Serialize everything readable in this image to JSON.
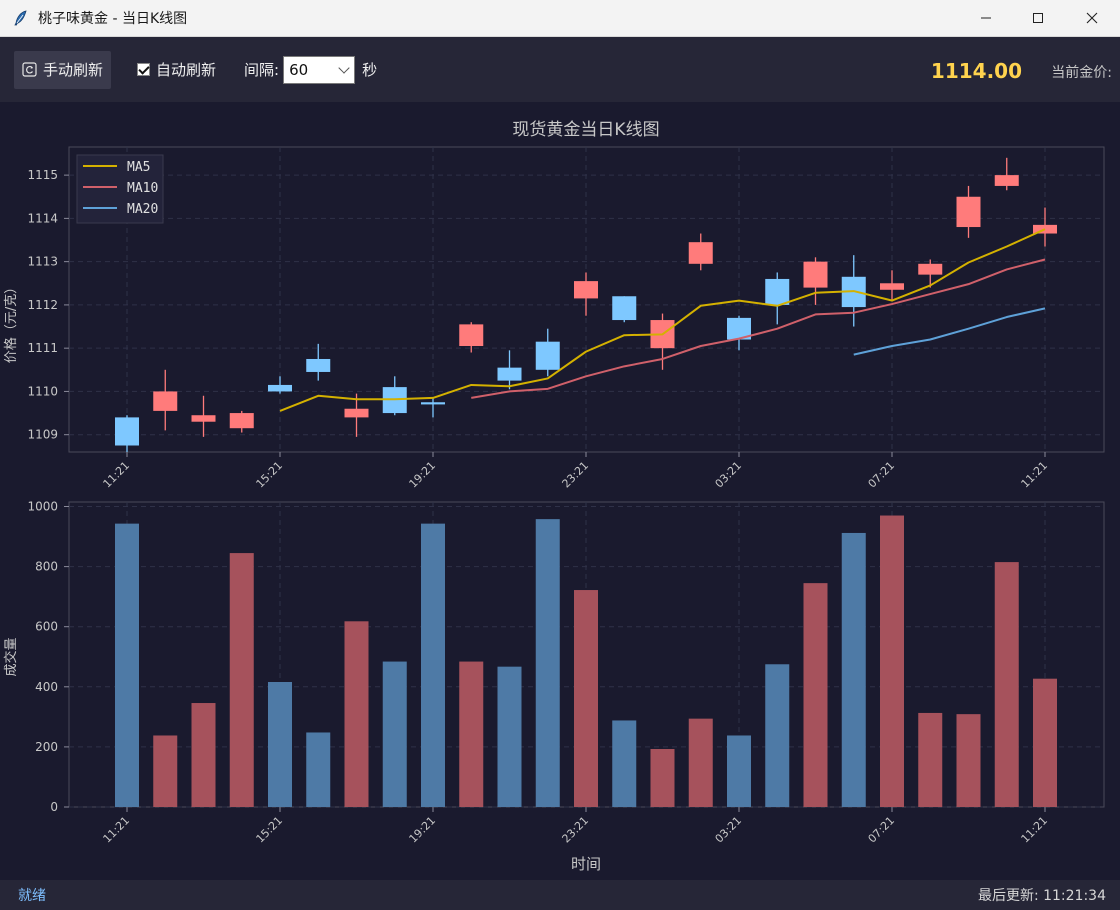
{
  "window": {
    "title": "桃子味黄金 - 当日K线图",
    "icons": [
      "feather-icon",
      "minimize-icon",
      "maximize-icon",
      "close-icon"
    ]
  },
  "toolbar": {
    "refresh_label": "手动刷新",
    "auto_refresh_label": "自动刷新",
    "auto_refresh_checked": true,
    "interval_label": "间隔:",
    "interval_value": "60",
    "interval_unit": "秒",
    "current_price": "1114.00",
    "current_price_label": "当前金价:"
  },
  "status": {
    "left": "就绪",
    "right": "最后更新: 11:21:34"
  },
  "colors": {
    "background": "#1a1a2e",
    "up": "#ff7b7b",
    "down": "#7ec8ff",
    "up_volume": "#a6525c",
    "down_volume": "#4e7aa6",
    "ma5": "#d4b100",
    "ma10": "#d0606a",
    "ma20": "#5ea1d8",
    "price_highlight": "#ffd34e"
  },
  "chart_data": [
    {
      "type": "candlestick",
      "title": "现货黄金当日K线图",
      "ylabel": "价格（元/克）",
      "xlabel": "",
      "ylim": [
        1108.6,
        1115.65
      ],
      "yticks": [
        1109,
        1110,
        1111,
        1112,
        1113,
        1114,
        1115
      ],
      "xticks": [
        {
          "index": 0,
          "label": "11:21"
        },
        {
          "index": 4,
          "label": "15:21"
        },
        {
          "index": 8,
          "label": "19:21"
        },
        {
          "index": 12,
          "label": "23:21"
        },
        {
          "index": 16,
          "label": "03:21"
        },
        {
          "index": 20,
          "label": "07:21"
        },
        {
          "index": 24,
          "label": "11:21"
        }
      ],
      "grid": true,
      "legend_position": "top-left",
      "candles": [
        {
          "o": 1109.4,
          "h": 1109.45,
          "l": 1108.6,
          "c": 1108.75
        },
        {
          "o": 1109.55,
          "h": 1110.5,
          "l": 1109.1,
          "c": 1110.0
        },
        {
          "o": 1109.3,
          "h": 1109.9,
          "l": 1108.95,
          "c": 1109.45
        },
        {
          "o": 1109.15,
          "h": 1109.55,
          "l": 1109.05,
          "c": 1109.5
        },
        {
          "o": 1110.15,
          "h": 1110.35,
          "l": 1109.95,
          "c": 1110.0
        },
        {
          "o": 1110.75,
          "h": 1111.1,
          "l": 1110.25,
          "c": 1110.45
        },
        {
          "o": 1109.4,
          "h": 1109.95,
          "l": 1108.95,
          "c": 1109.6
        },
        {
          "o": 1110.1,
          "h": 1110.35,
          "l": 1109.45,
          "c": 1109.5
        },
        {
          "o": 1109.75,
          "h": 1109.85,
          "l": 1109.4,
          "c": 1109.7
        },
        {
          "o": 1111.05,
          "h": 1111.6,
          "l": 1110.9,
          "c": 1111.55
        },
        {
          "o": 1110.55,
          "h": 1110.95,
          "l": 1110.05,
          "c": 1110.25
        },
        {
          "o": 1111.15,
          "h": 1111.45,
          "l": 1110.35,
          "c": 1110.5
        },
        {
          "o": 1112.15,
          "h": 1112.75,
          "l": 1111.75,
          "c": 1112.55
        },
        {
          "o": 1112.2,
          "h": 1112.2,
          "l": 1111.6,
          "c": 1111.65
        },
        {
          "o": 1111.0,
          "h": 1111.8,
          "l": 1110.5,
          "c": 1111.65
        },
        {
          "o": 1112.95,
          "h": 1113.65,
          "l": 1112.8,
          "c": 1113.45
        },
        {
          "o": 1111.7,
          "h": 1111.75,
          "l": 1110.95,
          "c": 1111.2
        },
        {
          "o": 1112.6,
          "h": 1112.75,
          "l": 1111.55,
          "c": 1112.0
        },
        {
          "o": 1112.4,
          "h": 1113.1,
          "l": 1112.0,
          "c": 1113.0
        },
        {
          "o": 1112.65,
          "h": 1113.15,
          "l": 1111.5,
          "c": 1111.95
        },
        {
          "o": 1112.35,
          "h": 1112.8,
          "l": 1112.1,
          "c": 1112.5
        },
        {
          "o": 1112.7,
          "h": 1113.05,
          "l": 1112.4,
          "c": 1112.95
        },
        {
          "o": 1113.8,
          "h": 1114.75,
          "l": 1113.55,
          "c": 1114.5
        },
        {
          "o": 1114.75,
          "h": 1115.4,
          "l": 1114.65,
          "c": 1115.0
        },
        {
          "o": 1113.65,
          "h": 1114.25,
          "l": 1113.35,
          "c": 1113.85
        }
      ],
      "series": [
        {
          "name": "MA5",
          "start_index": 4,
          "values": [
            1109.55,
            1109.9,
            1109.82,
            1109.82,
            1109.85,
            1110.15,
            1110.12,
            1110.3,
            1110.92,
            1111.3,
            1111.32,
            1111.98,
            1112.1,
            1111.98,
            1112.28,
            1112.32,
            1112.1,
            1112.45,
            1112.98,
            1113.35,
            1113.75
          ]
        },
        {
          "name": "MA10",
          "start_index": 9,
          "values": [
            1109.85,
            1110.0,
            1110.06,
            1110.35,
            1110.58,
            1110.75,
            1111.05,
            1111.22,
            1111.45,
            1111.78,
            1111.82,
            1112.02,
            1112.25,
            1112.48,
            1112.82,
            1113.05
          ]
        },
        {
          "name": "MA20",
          "start_index": 19,
          "values": [
            1110.85,
            1111.05,
            1111.2,
            1111.45,
            1111.72,
            1111.92
          ]
        }
      ]
    },
    {
      "type": "bar",
      "title": "",
      "ylabel": "成交量",
      "xlabel": "时间",
      "ylim": [
        0,
        1015
      ],
      "yticks": [
        0,
        200,
        400,
        600,
        800,
        1000
      ],
      "xticks": [
        {
          "index": 0,
          "label": "11:21"
        },
        {
          "index": 4,
          "label": "15:21"
        },
        {
          "index": 8,
          "label": "19:21"
        },
        {
          "index": 12,
          "label": "23:21"
        },
        {
          "index": 16,
          "label": "03:21"
        },
        {
          "index": 20,
          "label": "07:21"
        },
        {
          "index": 24,
          "label": "11:21"
        }
      ],
      "grid": true,
      "values": [
        943,
        238,
        346,
        845,
        416,
        248,
        618,
        484,
        943,
        484,
        467,
        958,
        722,
        288,
        193,
        294,
        238,
        475,
        745,
        912,
        970,
        313,
        309,
        815,
        427
      ]
    }
  ]
}
